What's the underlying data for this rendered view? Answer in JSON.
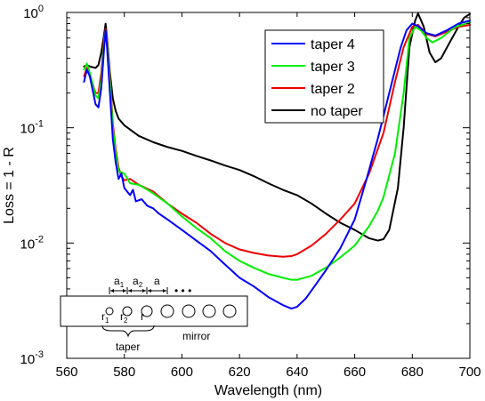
{
  "chart_data": {
    "type": "line",
    "xlabel": "Wavelength (nm)",
    "ylabel": "Loss = 1 - R",
    "xlim": [
      560,
      700
    ],
    "ylim": [
      0.001,
      1
    ],
    "yscale": "log",
    "x_ticks": [
      560,
      580,
      600,
      620,
      640,
      660,
      680,
      700
    ],
    "y_ticks": [
      {
        "value": 0.001,
        "base": "10",
        "exp": "-3"
      },
      {
        "value": 0.01,
        "base": "10",
        "exp": "-2"
      },
      {
        "value": 0.1,
        "base": "10",
        "exp": "-1"
      },
      {
        "value": 1,
        "base": "10",
        "exp": "0"
      }
    ],
    "grid": false,
    "legend_position": "top-right",
    "series": [
      {
        "name": "taper 4",
        "color": "#0000ff",
        "points": [
          [
            566,
            0.25
          ],
          [
            567,
            0.32
          ],
          [
            568,
            0.28
          ],
          [
            570,
            0.16
          ],
          [
            571,
            0.15
          ],
          [
            572,
            0.22
          ],
          [
            573,
            0.5
          ],
          [
            573.5,
            0.7
          ],
          [
            574,
            0.5
          ],
          [
            575,
            0.2
          ],
          [
            576,
            0.08
          ],
          [
            577,
            0.05
          ],
          [
            578,
            0.036
          ],
          [
            579,
            0.04
          ],
          [
            580,
            0.03
          ],
          [
            582,
            0.026
          ],
          [
            583,
            0.029
          ],
          [
            584,
            0.023
          ],
          [
            586,
            0.024
          ],
          [
            588,
            0.021
          ],
          [
            590,
            0.02
          ],
          [
            592,
            0.018
          ],
          [
            595,
            0.016
          ],
          [
            600,
            0.013
          ],
          [
            605,
            0.0105
          ],
          [
            610,
            0.0085
          ],
          [
            615,
            0.0065
          ],
          [
            620,
            0.005
          ],
          [
            625,
            0.0042
          ],
          [
            630,
            0.0034
          ],
          [
            635,
            0.0029
          ],
          [
            638,
            0.0027
          ],
          [
            640,
            0.0028
          ],
          [
            643,
            0.0033
          ],
          [
            646,
            0.0042
          ],
          [
            650,
            0.0058
          ],
          [
            655,
            0.009
          ],
          [
            660,
            0.016
          ],
          [
            664,
            0.035
          ],
          [
            668,
            0.08
          ],
          [
            672,
            0.2
          ],
          [
            676,
            0.5
          ],
          [
            678,
            0.7
          ],
          [
            680,
            0.8
          ],
          [
            682,
            0.76
          ],
          [
            685,
            0.66
          ],
          [
            688,
            0.63
          ],
          [
            692,
            0.7
          ],
          [
            696,
            0.8
          ],
          [
            700,
            0.85
          ]
        ]
      },
      {
        "name": "taper 3",
        "color": "#00ee00",
        "points": [
          [
            566,
            0.32
          ],
          [
            567,
            0.36
          ],
          [
            568,
            0.3
          ],
          [
            570,
            0.19
          ],
          [
            571,
            0.18
          ],
          [
            572,
            0.26
          ],
          [
            573,
            0.55
          ],
          [
            573.5,
            0.7
          ],
          [
            574,
            0.55
          ],
          [
            575,
            0.25
          ],
          [
            576,
            0.1
          ],
          [
            577,
            0.06
          ],
          [
            578,
            0.042
          ],
          [
            580,
            0.04
          ],
          [
            582,
            0.033
          ],
          [
            585,
            0.032
          ],
          [
            588,
            0.029
          ],
          [
            590,
            0.027
          ],
          [
            595,
            0.022
          ],
          [
            600,
            0.017
          ],
          [
            605,
            0.0135
          ],
          [
            610,
            0.011
          ],
          [
            615,
            0.0085
          ],
          [
            620,
            0.007
          ],
          [
            625,
            0.0061
          ],
          [
            630,
            0.0054
          ],
          [
            635,
            0.005
          ],
          [
            638,
            0.0048
          ],
          [
            640,
            0.0048
          ],
          [
            645,
            0.0052
          ],
          [
            650,
            0.0061
          ],
          [
            655,
            0.0075
          ],
          [
            660,
            0.0095
          ],
          [
            665,
            0.014
          ],
          [
            668,
            0.019
          ],
          [
            670,
            0.025
          ],
          [
            674,
            0.06
          ],
          [
            677,
            0.2
          ],
          [
            679,
            0.6
          ],
          [
            681,
            0.75
          ],
          [
            683,
            0.7
          ],
          [
            685,
            0.6
          ],
          [
            687,
            0.55
          ],
          [
            690,
            0.6
          ],
          [
            695,
            0.75
          ],
          [
            700,
            0.82
          ]
        ]
      },
      {
        "name": "taper 2",
        "color": "#ee0000",
        "points": [
          [
            566,
            0.28
          ],
          [
            567,
            0.33
          ],
          [
            568,
            0.29
          ],
          [
            570,
            0.2
          ],
          [
            571,
            0.2
          ],
          [
            572,
            0.3
          ],
          [
            573,
            0.6
          ],
          [
            573.5,
            0.72
          ],
          [
            574,
            0.6
          ],
          [
            575,
            0.28
          ],
          [
            576,
            0.11
          ],
          [
            577,
            0.065
          ],
          [
            578,
            0.045
          ],
          [
            579,
            0.038
          ],
          [
            580,
            0.035
          ],
          [
            582,
            0.036
          ],
          [
            585,
            0.032
          ],
          [
            590,
            0.028
          ],
          [
            595,
            0.022
          ],
          [
            600,
            0.018
          ],
          [
            605,
            0.015
          ],
          [
            610,
            0.012
          ],
          [
            615,
            0.01
          ],
          [
            620,
            0.0088
          ],
          [
            625,
            0.0082
          ],
          [
            630,
            0.0078
          ],
          [
            635,
            0.0076
          ],
          [
            638,
            0.0077
          ],
          [
            640,
            0.008
          ],
          [
            645,
            0.0095
          ],
          [
            650,
            0.012
          ],
          [
            655,
            0.016
          ],
          [
            660,
            0.022
          ],
          [
            665,
            0.04
          ],
          [
            670,
            0.09
          ],
          [
            674,
            0.25
          ],
          [
            677,
            0.5
          ],
          [
            680,
            0.75
          ],
          [
            682,
            0.78
          ],
          [
            685,
            0.65
          ],
          [
            688,
            0.62
          ],
          [
            692,
            0.68
          ],
          [
            696,
            0.75
          ],
          [
            700,
            0.78
          ]
        ]
      },
      {
        "name": "no taper",
        "color": "#000000",
        "points": [
          [
            566,
            0.34
          ],
          [
            567,
            0.35
          ],
          [
            568,
            0.34
          ],
          [
            570,
            0.33
          ],
          [
            571,
            0.35
          ],
          [
            572,
            0.45
          ],
          [
            573,
            0.65
          ],
          [
            573.5,
            0.8
          ],
          [
            574,
            0.6
          ],
          [
            575,
            0.3
          ],
          [
            576,
            0.18
          ],
          [
            577,
            0.14
          ],
          [
            578,
            0.12
          ],
          [
            580,
            0.105
          ],
          [
            585,
            0.085
          ],
          [
            590,
            0.075
          ],
          [
            595,
            0.068
          ],
          [
            600,
            0.063
          ],
          [
            605,
            0.057
          ],
          [
            610,
            0.052
          ],
          [
            615,
            0.047
          ],
          [
            620,
            0.043
          ],
          [
            625,
            0.038
          ],
          [
            630,
            0.033
          ],
          [
            635,
            0.029
          ],
          [
            640,
            0.026
          ],
          [
            645,
            0.022
          ],
          [
            650,
            0.018
          ],
          [
            655,
            0.015
          ],
          [
            660,
            0.013
          ],
          [
            665,
            0.011
          ],
          [
            668,
            0.0105
          ],
          [
            670,
            0.0108
          ],
          [
            672,
            0.013
          ],
          [
            675,
            0.03
          ],
          [
            677,
            0.1
          ],
          [
            679,
            0.5
          ],
          [
            681,
            0.85
          ],
          [
            682,
            0.98
          ],
          [
            684,
            0.75
          ],
          [
            686,
            0.45
          ],
          [
            688,
            0.37
          ],
          [
            690,
            0.4
          ],
          [
            693,
            0.55
          ],
          [
            696,
            0.75
          ],
          [
            698,
            0.9
          ],
          [
            700,
            0.97
          ]
        ]
      }
    ],
    "inset": {
      "labels": {
        "a1_base": "a",
        "a1_sub": "1",
        "a2_base": "a",
        "a2_sub": "2",
        "a": "a",
        "dots": "• • •",
        "r1_base": "r",
        "r1_sub": "1",
        "r2_base": "r",
        "r2_sub": "2",
        "r": "r",
        "taper": "taper",
        "mirror": "mirror"
      }
    }
  }
}
